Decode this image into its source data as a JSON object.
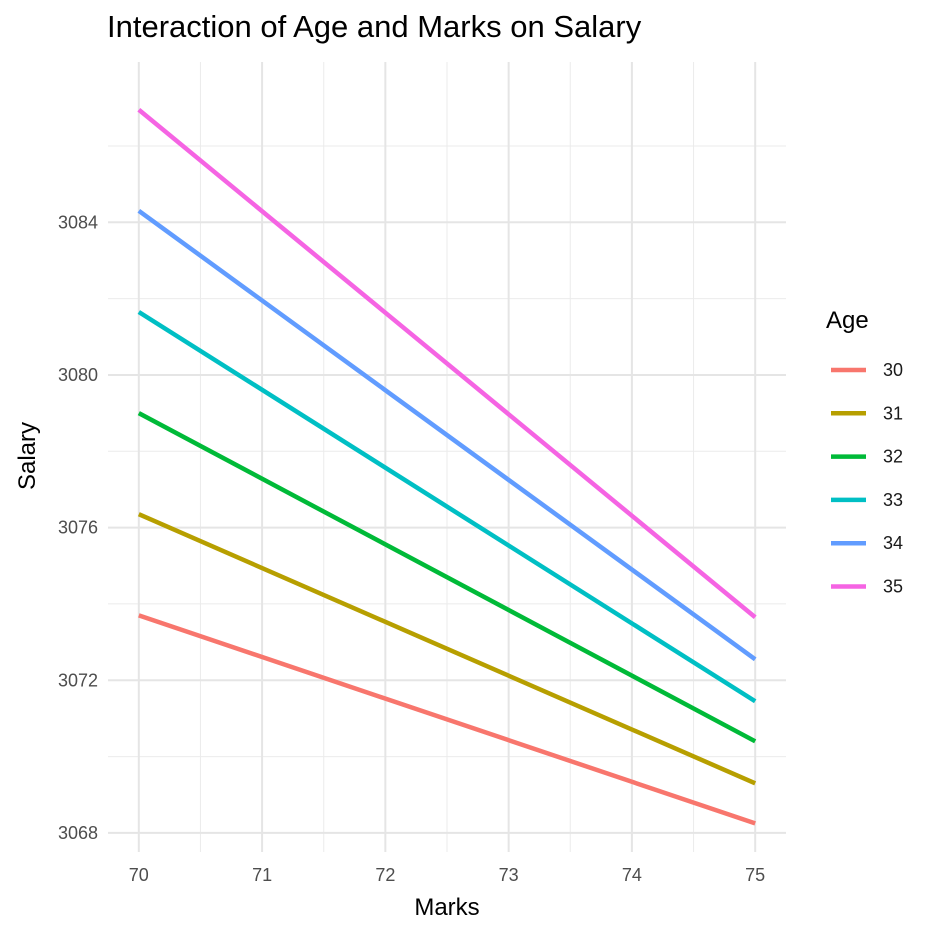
{
  "chart_data": {
    "type": "line",
    "title": "Interaction of Age and Marks on Salary",
    "xlabel": "Marks",
    "ylabel": "Salary",
    "x": [
      70,
      75
    ],
    "xticks": [
      "70",
      "71",
      "72",
      "73",
      "74",
      "75"
    ],
    "yticks": [
      "3068",
      "3072",
      "3076",
      "3080",
      "3084"
    ],
    "xlim": [
      69.75,
      75.25
    ],
    "ylim": [
      3067.5,
      3088.2
    ],
    "grid": true,
    "legend": {
      "title": "Age",
      "placement": "right"
    },
    "series": [
      {
        "name": "30",
        "values": [
          3073.7,
          3068.25
        ],
        "color": "#F8766D"
      },
      {
        "name": "31",
        "values": [
          3076.35,
          3069.3
        ],
        "color": "#B79F00"
      },
      {
        "name": "32",
        "values": [
          3079.0,
          3070.4
        ],
        "color": "#00BA38"
      },
      {
        "name": "33",
        "values": [
          3081.65,
          3071.45
        ],
        "color": "#00BFC4"
      },
      {
        "name": "34",
        "values": [
          3084.3,
          3072.55
        ],
        "color": "#619CFF"
      },
      {
        "name": "35",
        "values": [
          3086.95,
          3073.65
        ],
        "color": "#F564E3"
      }
    ]
  }
}
